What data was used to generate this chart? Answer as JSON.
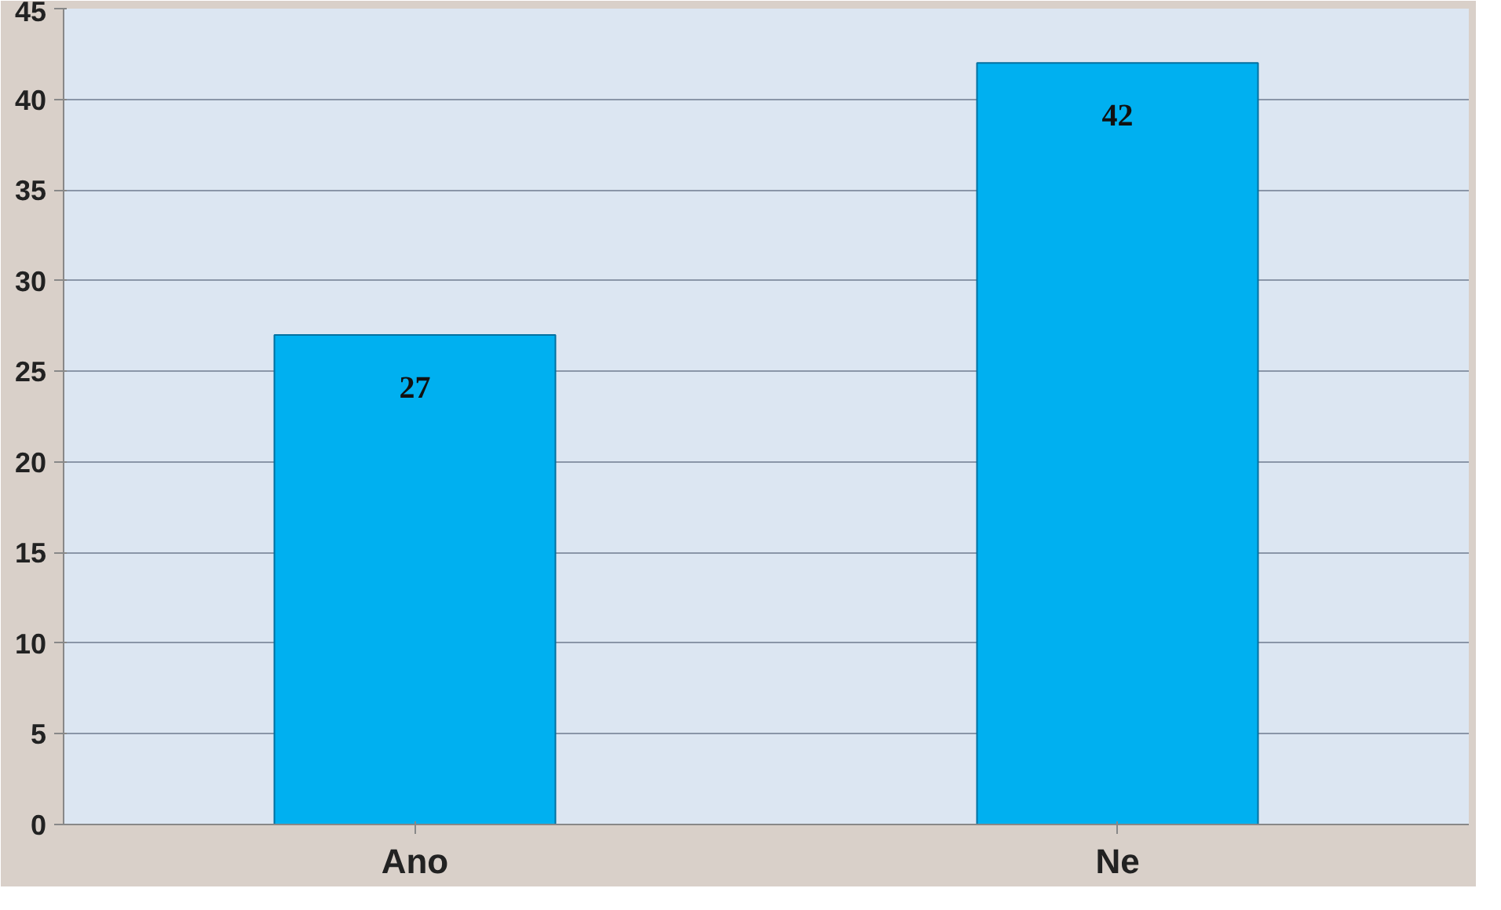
{
  "chart_data": {
    "type": "bar",
    "categories": [
      "Ano",
      "Ne"
    ],
    "values": [
      27,
      42
    ],
    "color": "#00b0f0",
    "ylim": [
      0,
      45
    ],
    "yticks": [
      0,
      5,
      10,
      15,
      20,
      25,
      30,
      35,
      40,
      45
    ],
    "grid": "y",
    "data_labels": true
  }
}
